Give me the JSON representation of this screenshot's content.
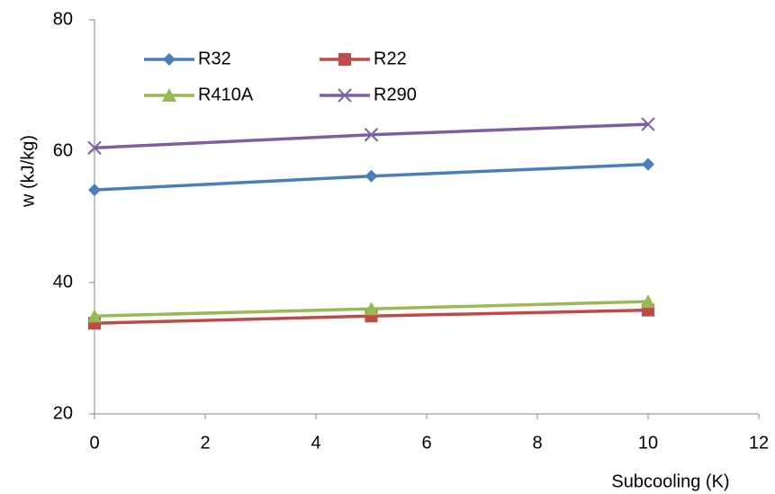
{
  "chart_data": {
    "type": "line",
    "x_label": "Subcooling (K)",
    "y_label": "w (kJ/kg)",
    "x": [
      0,
      5,
      10
    ],
    "series": [
      {
        "name": "R32",
        "color": "#4a7ebb",
        "marker": "diamond",
        "values": [
          54.1,
          56.2,
          58.0
        ]
      },
      {
        "name": "R22",
        "color": "#be4b48",
        "marker": "square",
        "values": [
          33.8,
          34.9,
          35.8
        ]
      },
      {
        "name": "R410A",
        "color": "#98b954",
        "marker": "triangle",
        "values": [
          34.9,
          36.0,
          37.1
        ]
      },
      {
        "name": "R290",
        "color": "#7d5fa0",
        "marker": "x",
        "values": [
          60.5,
          62.5,
          64.1
        ]
      }
    ],
    "xlim": [
      0,
      12
    ],
    "xticks": [
      0,
      2,
      4,
      6,
      8,
      10,
      12
    ],
    "ylim": [
      20,
      80
    ],
    "yticks": [
      20,
      40,
      60,
      80
    ],
    "grid": false,
    "legend": "top-left"
  }
}
